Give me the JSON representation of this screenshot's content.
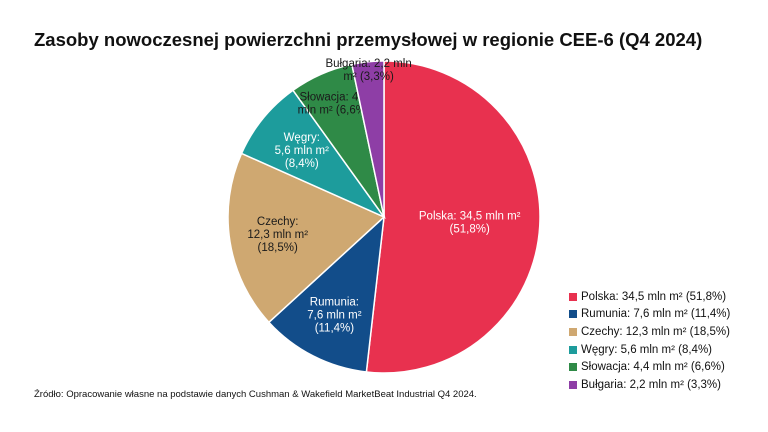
{
  "title": "Zasoby nowoczesnej powierzchni przemysłowej w regionie CEE-6 (Q4 2024)",
  "source": "Źródło: Opracowanie własne na podstawie danych Cushman & Wakefield MarketBeat Industrial Q4 2024.",
  "chart_data": {
    "type": "pie",
    "title": "Zasoby nowoczesnej powierzchni przemysłowej w regionie CEE-6 (Q4 2024)",
    "unit": "mln m²",
    "legend_position": "bottom-right",
    "slices": [
      {
        "name": "Polska",
        "value": 34.5,
        "percent": 51.8,
        "color": "#e8314f",
        "label_color": "#ffffff",
        "label_lines": [
          "Polska: 34,5 mln m²",
          "(51,8%)"
        ],
        "legend": "Polska: 34,5 mln m² (51,8%)"
      },
      {
        "name": "Rumunia",
        "value": 7.6,
        "percent": 11.4,
        "color": "#124d8a",
        "label_color": "#ffffff",
        "label_lines": [
          "Rumunia:",
          "7,6 mln m²",
          "(11,4%)"
        ],
        "legend": "Rumunia: 7,6 mln m² (11,4%)"
      },
      {
        "name": "Czechy",
        "value": 12.3,
        "percent": 18.5,
        "color": "#cfa871",
        "label_color": "#1a1a1a",
        "label_lines": [
          "Czechy:",
          "12,3 mln m²",
          "(18,5%)"
        ],
        "legend": "Czechy: 12,3 mln m² (18,5%)"
      },
      {
        "name": "Węgry",
        "value": 5.6,
        "percent": 8.4,
        "color": "#1d9c9c",
        "label_color": "#ffffff",
        "label_lines": [
          "Węgry:",
          "5,6 mln m²",
          "(8,4%)"
        ],
        "legend": "Węgry: 5,6 mln m² (8,4%)"
      },
      {
        "name": "Słowacja",
        "value": 4.4,
        "percent": 6.6,
        "color": "#2f8a47",
        "label_color": "#1a1a1a",
        "label_lines": [
          "Słowacja: 4,4",
          "mln m² (6,6%)"
        ],
        "legend": "Słowacja: 4,4 mln m² (6,6%)"
      },
      {
        "name": "Bułgaria",
        "value": 2.2,
        "percent": 3.3,
        "color": "#8e3ea6",
        "label_color": "#1a1a1a",
        "label_lines": [
          "Bułgaria: 2,2 mln",
          "m² (3,3%)"
        ],
        "legend": "Bułgaria: 2,2 mln m² (3,3%)"
      }
    ]
  }
}
